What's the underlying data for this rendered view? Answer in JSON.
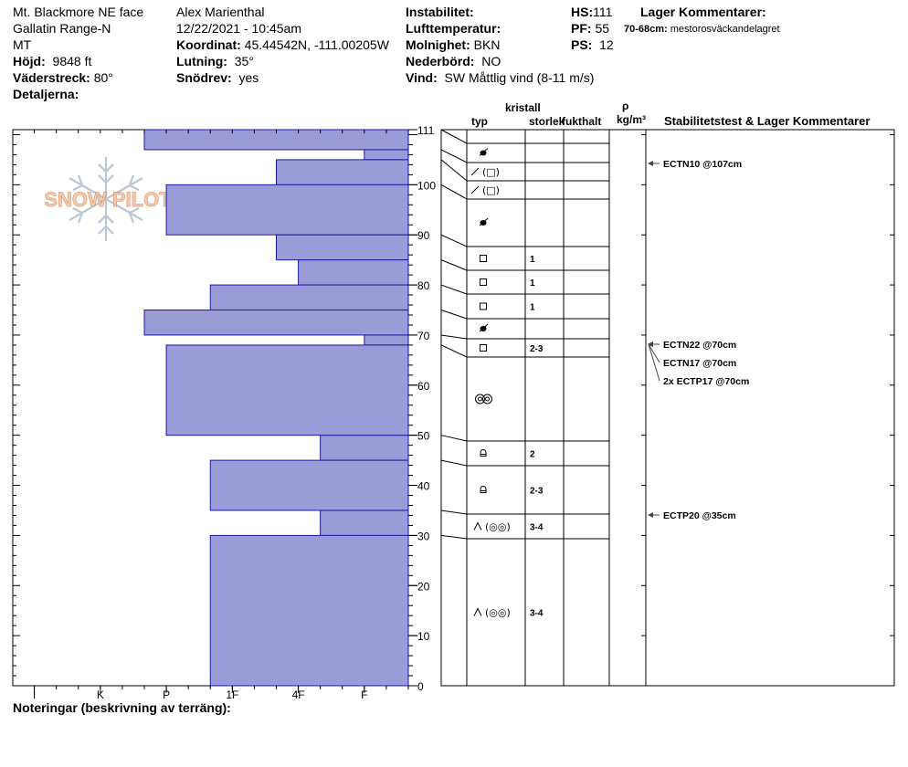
{
  "header": {
    "location": "Mt. Blackmore NE face",
    "range": "Gallatin Range-N",
    "state": "MT",
    "elevation_label": "Höjd:",
    "elevation": "9848 ft",
    "aspect_label": "Väderstreck:",
    "aspect": "80°",
    "details_label": "Detaljerna:",
    "observer": "Alex Marienthal",
    "datetime": "12/22/2021 - 10:45am",
    "coord_label": "Koordinat:",
    "coordinates": "45.44542N, -111.00205W",
    "slope_label": "Lutning:",
    "slope": "35°",
    "drift_label": "Snödrev:",
    "drift": "yes",
    "instability_label": "Instabilitet:",
    "airtemp_label": "Lufttemperatur:",
    "sky_label": "Molnighet:",
    "sky": "BKN",
    "precip_label": "Nederbörd:",
    "precip": "NO",
    "wind_label": "Vind:",
    "wind_dir": "SW",
    "wind_desc": "Måttlig vind (8-11 m/s)",
    "hs_label": "HS:",
    "hs": "111",
    "pf_label": "PF:",
    "pf": "55",
    "ps_label": "PS:",
    "ps": "12",
    "layer_comments_label": "Lager Kommentarer:",
    "layer_comment_range": "70-68cm:",
    "layer_comment_text": "mestorosväckandelagret"
  },
  "columns": {
    "crystal": "kristall",
    "type": "typ",
    "size": "storlek",
    "moisture": "fukthalt",
    "rho": "ρ",
    "density_unit": "kg/m³",
    "stability": "Stabilitetstest & Lager Kommentarer"
  },
  "footer": {
    "notes_label": "Noteringar (beskrivning av terräng):"
  },
  "logo_text": "SNOW PILOT",
  "colors": {
    "bar_fill": "#9b9bd8",
    "bar_stroke": "#1a1aa0",
    "arrow": "#444444"
  },
  "chart_data": {
    "type": "bar",
    "orientation": "horizontal",
    "description_axis": "hand hardness",
    "hardness_categories": [
      "F-",
      "F",
      "F+",
      "4F-",
      "4F",
      "4F+",
      "1F-",
      "1F",
      "1F+",
      "P-",
      "P",
      "P+",
      "K-",
      "K",
      "K+",
      "I-",
      "I",
      "I+"
    ],
    "x_tick_labels": [
      "I",
      "K",
      "P",
      "1F",
      "4F",
      "F"
    ],
    "y_ticks": [
      0,
      10,
      20,
      30,
      40,
      50,
      60,
      70,
      80,
      90,
      100,
      111
    ],
    "ylim": [
      0,
      111
    ],
    "layers": [
      {
        "top": 111,
        "bottom": 107,
        "hardness": "P+",
        "grain": "mf",
        "size": ""
      },
      {
        "top": 107,
        "bottom": 105,
        "hardness": "F",
        "grain": "dfrg",
        "size": ""
      },
      {
        "top": 105,
        "bottom": 100,
        "hardness": "4F+",
        "grain": "dfrg",
        "size": ""
      },
      {
        "top": 100,
        "bottom": 90,
        "hardness": "P",
        "grain": "mf",
        "size": ""
      },
      {
        "top": 90,
        "bottom": 85,
        "hardness": "4F+",
        "grain": "fc",
        "size": "1"
      },
      {
        "top": 85,
        "bottom": 80,
        "hardness": "4F",
        "grain": "fc",
        "size": "1"
      },
      {
        "top": 80,
        "bottom": 75,
        "hardness": "1F+",
        "grain": "fc",
        "size": "1"
      },
      {
        "top": 75,
        "bottom": 70,
        "hardness": "P+",
        "grain": "mf",
        "size": ""
      },
      {
        "top": 70,
        "bottom": 68,
        "hardness": "F",
        "grain": "fc",
        "size": "2-3"
      },
      {
        "top": 68,
        "bottom": 50,
        "hardness": "P",
        "grain": "mfcr",
        "size": ""
      },
      {
        "top": 50,
        "bottom": 45,
        "hardness": "4F-",
        "grain": "dh",
        "size": "2"
      },
      {
        "top": 45,
        "bottom": 35,
        "hardness": "1F+",
        "grain": "dh",
        "size": "2-3"
      },
      {
        "top": 35,
        "bottom": 30,
        "hardness": "4F-",
        "grain": "dhmfcr",
        "size": "3-4"
      },
      {
        "top": 30,
        "bottom": 0,
        "hardness": "1F+",
        "grain": "dhmfcr",
        "size": "3-4"
      }
    ],
    "stability_tests": [
      {
        "depth": 107,
        "label": "ECTN10 @107cm"
      },
      {
        "depth": 70,
        "label": "ECTN22 @70cm"
      },
      {
        "depth": 70,
        "label": "ECTN17 @70cm"
      },
      {
        "depth": 70,
        "label": "2x ECTP17 @70cm"
      },
      {
        "depth": 35,
        "label": "ECTP20 @35cm"
      }
    ]
  }
}
